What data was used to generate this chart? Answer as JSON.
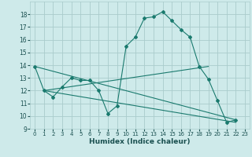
{
  "title": "",
  "xlabel": "Humidex (Indice chaleur)",
  "bg_color": "#ceeaea",
  "grid_color": "#aacccc",
  "line_color": "#1a7a6e",
  "xlim": [
    -0.5,
    23.5
  ],
  "ylim": [
    9,
    19
  ],
  "xticks": [
    0,
    1,
    2,
    3,
    4,
    5,
    6,
    7,
    8,
    9,
    10,
    11,
    12,
    13,
    14,
    15,
    16,
    17,
    18,
    19,
    20,
    21,
    22,
    23
  ],
  "yticks": [
    9,
    10,
    11,
    12,
    13,
    14,
    15,
    16,
    17,
    18
  ],
  "series": [
    [
      0,
      13.9
    ],
    [
      1,
      12.0
    ],
    [
      2,
      11.5
    ],
    [
      3,
      12.3
    ],
    [
      4,
      13.0
    ],
    [
      5,
      12.8
    ],
    [
      6,
      12.8
    ],
    [
      7,
      12.0
    ],
    [
      8,
      10.2
    ],
    [
      9,
      10.8
    ],
    [
      10,
      15.5
    ],
    [
      11,
      16.2
    ],
    [
      12,
      17.7
    ],
    [
      13,
      17.8
    ],
    [
      14,
      18.2
    ],
    [
      15,
      17.5
    ],
    [
      16,
      16.8
    ],
    [
      17,
      16.2
    ],
    [
      18,
      13.9
    ],
    [
      19,
      12.9
    ],
    [
      20,
      11.2
    ],
    [
      21,
      9.5
    ],
    [
      22,
      9.7
    ]
  ],
  "line2": [
    [
      0,
      13.9
    ],
    [
      22,
      9.7
    ]
  ],
  "line3": [
    [
      1,
      12.0
    ],
    [
      19,
      13.9
    ]
  ],
  "line4": [
    [
      1,
      12.0
    ],
    [
      22,
      9.5
    ]
  ]
}
